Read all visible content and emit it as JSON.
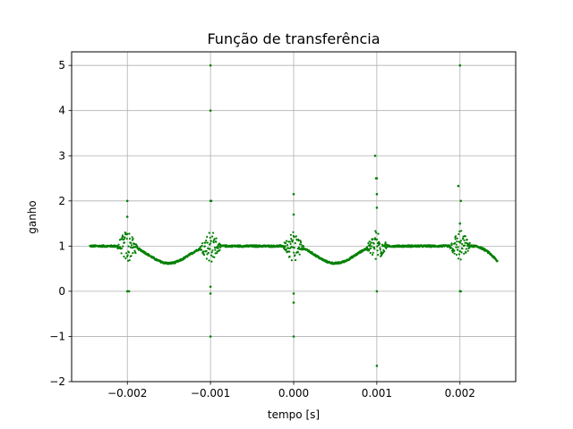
{
  "chart_data": {
    "type": "scatter",
    "title": "Função de transferência",
    "xlabel": "tempo [s]",
    "ylabel": "ganho",
    "xlim": [
      -0.00267,
      0.00267
    ],
    "ylim": [
      -2,
      5.3
    ],
    "xticks": [
      -0.002,
      -0.001,
      0.0,
      0.001,
      0.002
    ],
    "xtick_labels": [
      "−0.002",
      "−0.001",
      "0.000",
      "0.001",
      "0.002"
    ],
    "yticks": [
      -2,
      -1,
      0,
      1,
      2,
      3,
      4,
      5
    ],
    "ytick_labels": [
      "−2",
      "−1",
      "0",
      "1",
      "2",
      "3",
      "4",
      "5"
    ],
    "grid": true,
    "marker_color": "#008000",
    "x_range": [
      -0.00245,
      0.00245
    ],
    "baseline_gain": 1.0,
    "dips": [
      {
        "x": -0.0015,
        "y": 0.62
      },
      {
        "x": 0.0005,
        "y": 0.62
      }
    ],
    "end_value": {
      "x": 0.00245,
      "y": 0.66
    },
    "spread_clusters": [
      -0.002,
      -0.001,
      0.0,
      0.001,
      0.002
    ],
    "outliers": [
      {
        "x": -0.002,
        "y": 2.0
      },
      {
        "x": -0.002,
        "y": 1.65
      },
      {
        "x": -0.002,
        "y": 0.0
      },
      {
        "x": -0.00198,
        "y": 0.0
      },
      {
        "x": -0.001,
        "y": 5.0
      },
      {
        "x": -0.001,
        "y": 4.0
      },
      {
        "x": -0.001,
        "y": 2.0
      },
      {
        "x": -0.00099,
        "y": 2.0
      },
      {
        "x": -0.001,
        "y": 0.1
      },
      {
        "x": -0.001,
        "y": -0.05
      },
      {
        "x": -0.001,
        "y": -1.0
      },
      {
        "x": 0.0,
        "y": 2.15
      },
      {
        "x": 0.0,
        "y": 1.7
      },
      {
        "x": 0.0,
        "y": -0.05
      },
      {
        "x": 0.0,
        "y": -0.25
      },
      {
        "x": 0.0,
        "y": -1.0
      },
      {
        "x": 0.00098,
        "y": 3.0
      },
      {
        "x": 0.00099,
        "y": 2.5
      },
      {
        "x": 0.001,
        "y": 2.5
      },
      {
        "x": 0.001,
        "y": 2.15
      },
      {
        "x": 0.001,
        "y": 1.85
      },
      {
        "x": 0.001,
        "y": 0.0
      },
      {
        "x": 0.001,
        "y": -1.65
      },
      {
        "x": 0.002,
        "y": 5.0
      },
      {
        "x": 0.00198,
        "y": 2.33
      },
      {
        "x": 0.00201,
        "y": 2.0
      },
      {
        "x": 0.002,
        "y": 1.5
      },
      {
        "x": 0.002,
        "y": 0.0
      },
      {
        "x": 0.00201,
        "y": 0.0
      }
    ]
  }
}
